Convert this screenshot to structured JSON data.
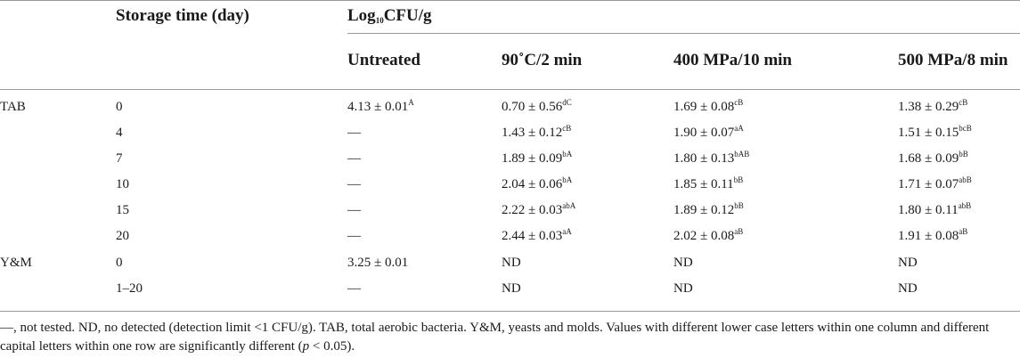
{
  "header": {
    "storage_time": "Storage time (day)",
    "unit": {
      "main": "Log",
      "sub": "10",
      "rest": "CFU/g"
    },
    "treatments": [
      "Untreated",
      "90˚C/2 min",
      "400 MPa/10 min",
      "500 MPa/8 min"
    ]
  },
  "rows": [
    {
      "group": "TAB",
      "day": "0",
      "cells": [
        {
          "v": "4.13 ± 0.01",
          "s": "A"
        },
        {
          "v": "0.70 ± 0.56",
          "s": "dC"
        },
        {
          "v": "1.69 ± 0.08",
          "s": "cB"
        },
        {
          "v": "1.38 ± 0.29",
          "s": "cB"
        }
      ]
    },
    {
      "group": "",
      "day": "4",
      "cells": [
        {
          "v": "—",
          "s": ""
        },
        {
          "v": "1.43 ± 0.12",
          "s": "cB"
        },
        {
          "v": "1.90 ± 0.07",
          "s": "aA"
        },
        {
          "v": "1.51 ± 0.15",
          "s": "bcB"
        }
      ]
    },
    {
      "group": "",
      "day": "7",
      "cells": [
        {
          "v": "—",
          "s": ""
        },
        {
          "v": "1.89 ± 0.09",
          "s": "bA"
        },
        {
          "v": "1.80 ± 0.13",
          "s": "bAB"
        },
        {
          "v": "1.68 ± 0.09",
          "s": "bB"
        }
      ]
    },
    {
      "group": "",
      "day": "10",
      "cells": [
        {
          "v": "—",
          "s": ""
        },
        {
          "v": "2.04 ± 0.06",
          "s": "bA"
        },
        {
          "v": "1.85 ± 0.11",
          "s": "bB"
        },
        {
          "v": "1.71 ± 0.07",
          "s": "abB"
        }
      ]
    },
    {
      "group": "",
      "day": "15",
      "cells": [
        {
          "v": "—",
          "s": ""
        },
        {
          "v": "2.22 ± 0.03",
          "s": "abA"
        },
        {
          "v": "1.89 ± 0.12",
          "s": "bB"
        },
        {
          "v": "1.80 ± 0.11",
          "s": "abB"
        }
      ]
    },
    {
      "group": "",
      "day": "20",
      "cells": [
        {
          "v": "—",
          "s": ""
        },
        {
          "v": "2.44 ± 0.03",
          "s": "aA"
        },
        {
          "v": "2.02 ± 0.08",
          "s": "aB"
        },
        {
          "v": "1.91 ± 0.08",
          "s": "aB"
        }
      ]
    },
    {
      "group": "Y&M",
      "day": "0",
      "cells": [
        {
          "v": "3.25 ± 0.01",
          "s": ""
        },
        {
          "v": "ND",
          "s": ""
        },
        {
          "v": "ND",
          "s": ""
        },
        {
          "v": "ND",
          "s": ""
        }
      ]
    },
    {
      "group": "",
      "day": "1–20",
      "cells": [
        {
          "v": "—",
          "s": ""
        },
        {
          "v": "ND",
          "s": ""
        },
        {
          "v": "ND",
          "s": ""
        },
        {
          "v": "ND",
          "s": ""
        }
      ]
    }
  ],
  "footnote": {
    "text": "—, not tested. ND, no detected (detection limit <1 CFU/g). TAB, total aerobic bacteria. Y&M, yeasts and molds. Values with different lower case letters within one column and different capital letters within one row are significantly different (",
    "p": "p",
    "tail": " < 0.05)."
  }
}
